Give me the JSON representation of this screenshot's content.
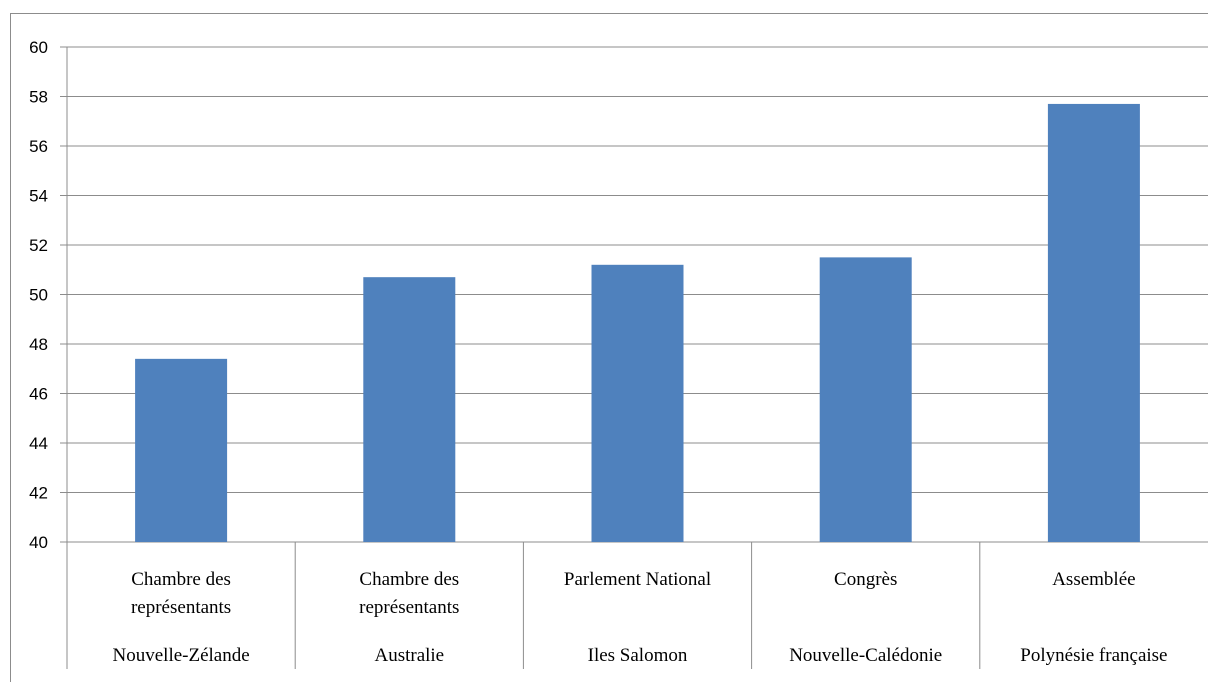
{
  "chart_data": {
    "type": "bar",
    "title": "",
    "xlabel": "",
    "ylabel": "",
    "ylim": [
      40,
      60
    ],
    "y_ticks": [
      40,
      42,
      44,
      46,
      48,
      50,
      52,
      54,
      56,
      58,
      60
    ],
    "grid": true,
    "legend": "none",
    "bar_color": "#4f81bd",
    "categories": [
      {
        "institution": [
          "Chambre des",
          "représentants"
        ],
        "country": "Nouvelle-Zélande"
      },
      {
        "institution": [
          "Chambre des",
          "représentants"
        ],
        "country": "Australie"
      },
      {
        "institution": [
          "Parlement National"
        ],
        "country": "Iles Salomon"
      },
      {
        "institution": [
          "Congrès"
        ],
        "country": "Nouvelle-Calédonie"
      },
      {
        "institution": [
          "Assemblée"
        ],
        "country": "Polynésie française"
      }
    ],
    "values": [
      47.4,
      50.7,
      51.2,
      51.5,
      57.7
    ]
  }
}
